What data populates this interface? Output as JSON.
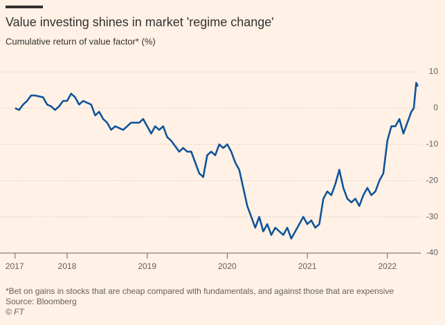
{
  "chart_data": {
    "type": "line",
    "title": "Value investing shines in market 'regime change'",
    "subtitle": "Cumulative return of value factor* (%)",
    "footnote": "*Bet on gains in stocks that are cheap compared with fundamentals, and against those that are expensive",
    "source": "Source: Bloomberg",
    "credit": "© FT",
    "color": "#0f5499",
    "grid": true,
    "xlim": [
      2017.35,
      2022.4
    ],
    "xticks": [
      {
        "value": 2017.35,
        "label": "2017"
      },
      2018,
      2019,
      2020,
      2021,
      2022
    ],
    "ylim": [
      -40,
      10
    ],
    "yticks": [
      10,
      0,
      -10,
      -20,
      -30,
      -40
    ],
    "x": [
      2017.35,
      2017.4,
      2017.45,
      2017.5,
      2017.55,
      2017.6,
      2017.7,
      2017.75,
      2017.8,
      2017.85,
      2017.9,
      2017.95,
      2018.0,
      2018.05,
      2018.1,
      2018.15,
      2018.2,
      2018.3,
      2018.35,
      2018.4,
      2018.45,
      2018.5,
      2018.55,
      2018.6,
      2018.7,
      2018.8,
      2018.9,
      2018.95,
      2019.0,
      2019.05,
      2019.1,
      2019.15,
      2019.2,
      2019.25,
      2019.3,
      2019.4,
      2019.45,
      2019.5,
      2019.55,
      2019.6,
      2019.65,
      2019.7,
      2019.75,
      2019.8,
      2019.85,
      2019.9,
      2019.95,
      2020.0,
      2020.05,
      2020.1,
      2020.15,
      2020.2,
      2020.25,
      2020.3,
      2020.35,
      2020.4,
      2020.45,
      2020.5,
      2020.55,
      2020.6,
      2020.65,
      2020.7,
      2020.75,
      2020.8,
      2020.85,
      2020.9,
      2020.95,
      2021.0,
      2021.05,
      2021.1,
      2021.15,
      2021.2,
      2021.25,
      2021.3,
      2021.35,
      2021.4,
      2021.45,
      2021.5,
      2021.55,
      2021.6,
      2021.65,
      2021.7,
      2021.75,
      2021.8,
      2021.85,
      2021.9,
      2021.95,
      2022.0,
      2022.05,
      2022.1,
      2022.15,
      2022.2,
      2022.25,
      2022.3,
      2022.33,
      2022.36,
      2022.38
    ],
    "values": [
      0,
      -0.5,
      1,
      2,
      3.5,
      3.5,
      3,
      1,
      0.5,
      -0.5,
      0.5,
      2,
      2,
      4,
      3,
      1,
      2,
      1,
      -2,
      -1,
      -3,
      -4,
      -6,
      -5,
      -6,
      -4,
      -4,
      -3,
      -5,
      -7,
      -5,
      -6,
      -5,
      -8,
      -9,
      -12,
      -11,
      -12,
      -12,
      -15,
      -18,
      -19,
      -13,
      -12,
      -13,
      -10,
      -11,
      -10,
      -12,
      -15,
      -17,
      -22,
      -27,
      -30,
      -33,
      -30,
      -34,
      -32,
      -35,
      -33,
      -34,
      -35,
      -33,
      -36,
      -34,
      -32,
      -30,
      -32,
      -31,
      -33,
      -32,
      -25,
      -23,
      -24,
      -21,
      -17,
      -22,
      -25,
      -26,
      -25,
      -27,
      -24,
      -22,
      -24,
      -23,
      -20,
      -18,
      -9,
      -5,
      -5,
      -3,
      -7,
      -4,
      -1,
      0,
      7,
      6
    ]
  }
}
